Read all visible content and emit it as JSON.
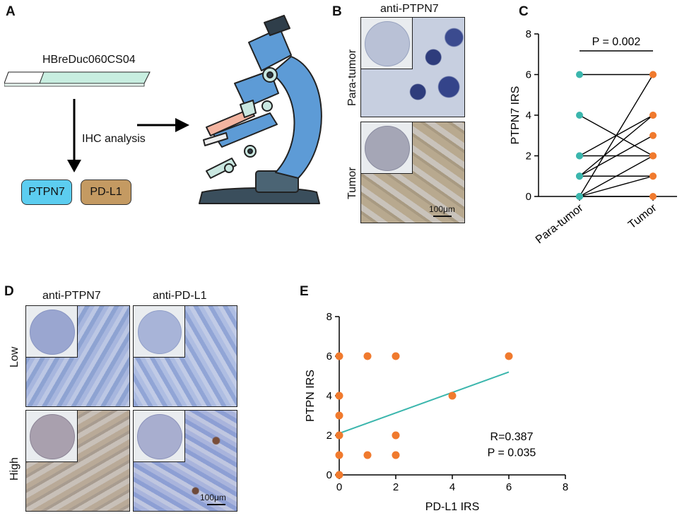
{
  "panels": {
    "A": {
      "letter": "A",
      "array_name": "HBreDuc060CS04",
      "arrow_label": "IHC analysis",
      "box1": "PTPN7",
      "box2": "PD-L1",
      "colors": {
        "ptpn7_box": "#5ccdf0",
        "pdl1_box": "#c49a62",
        "slide": "#c8eee0"
      }
    },
    "B": {
      "letter": "B",
      "title": "anti-PTPN7",
      "row1": "Para-tumor",
      "row2": "Tumor",
      "scalebar": "100μm"
    },
    "C": {
      "letter": "C",
      "pvalue": "P = 0.002"
    },
    "D": {
      "letter": "D",
      "col1": "anti-PTPN7",
      "col2": "anti-PD-L1",
      "row1": "Low",
      "row2": "High",
      "scalebar": "100μm"
    },
    "E": {
      "letter": "E",
      "r_text": "R=0.387",
      "p_text": "P = 0.035"
    }
  },
  "chart_data": [
    {
      "id": "C",
      "type": "scatter",
      "subtype": "paired-dot",
      "categories": [
        "Para-tumor",
        "Tumor"
      ],
      "ylabel": "PTPN7 IRS",
      "ylim": [
        0,
        8
      ],
      "yticks": [
        0,
        2,
        4,
        6,
        8
      ],
      "pairs": [
        [
          6,
          6
        ],
        [
          4,
          2
        ],
        [
          2,
          4
        ],
        [
          2,
          2
        ],
        [
          1,
          4
        ],
        [
          1,
          3
        ],
        [
          1,
          1
        ],
        [
          0,
          6
        ],
        [
          0,
          2
        ],
        [
          0,
          1
        ],
        [
          0,
          0
        ]
      ],
      "colors": {
        "para": "#3bb6ad",
        "tumor": "#f07a2e",
        "line": "#000000"
      },
      "annotation": "P = 0.002"
    },
    {
      "id": "E",
      "type": "scatter",
      "xlabel": "PD-L1 IRS",
      "ylabel": "PTPN IRS",
      "xlim": [
        0,
        8
      ],
      "ylim": [
        0,
        8
      ],
      "xticks": [
        0,
        2,
        4,
        6,
        8
      ],
      "yticks": [
        0,
        2,
        4,
        6,
        8
      ],
      "points": [
        [
          0,
          0
        ],
        [
          0,
          1
        ],
        [
          0,
          2
        ],
        [
          0,
          3
        ],
        [
          0,
          4
        ],
        [
          0,
          6
        ],
        [
          1,
          1
        ],
        [
          1,
          6
        ],
        [
          2,
          1
        ],
        [
          2,
          2
        ],
        [
          2,
          6
        ],
        [
          4,
          4
        ],
        [
          6,
          6
        ]
      ],
      "fit": {
        "x": [
          0,
          6
        ],
        "y": [
          2.1,
          5.2
        ]
      },
      "colors": {
        "point": "#f07a2e",
        "fit": "#3bb6ad"
      },
      "annotations": [
        "R=0.387",
        "P = 0.035"
      ]
    }
  ]
}
